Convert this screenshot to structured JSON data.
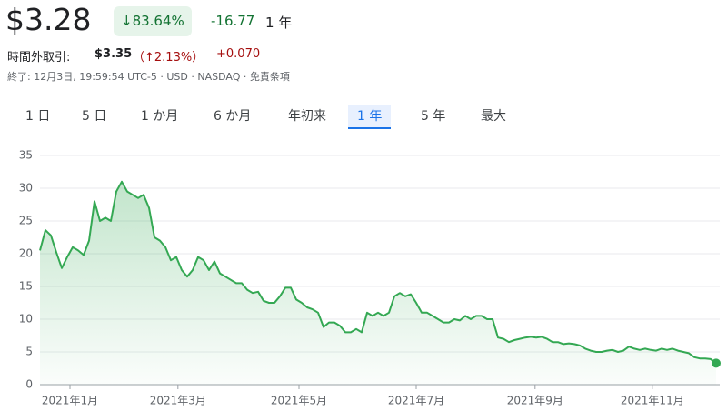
{
  "header": {
    "price": "$3.28",
    "change_pct": "↓83.64%",
    "change": "-16.77",
    "period": "1 年",
    "after_hours_label": "時間外取引:",
    "after_hours_price": "$3.35",
    "after_hours_pct": "（↑2.13%）",
    "after_hours_change": "+0.070",
    "footer": "終了: 12月3日, 19:59:54 UTC-5 · USD · NASDAQ · 免責条項"
  },
  "tabs": [
    "1 日",
    "5 日",
    "1 か月",
    "6 か月",
    "年初来",
    "1 年",
    "5 年",
    "最大"
  ],
  "selected_tab": 5,
  "chart_data": {
    "type": "line",
    "color": "#34a853",
    "grid": true,
    "values": [
      20.5,
      23.6,
      22.8,
      20.2,
      17.8,
      19.5,
      21,
      20.5,
      19.8,
      22,
      28,
      25,
      25.5,
      25,
      29.5,
      31,
      29.5,
      29,
      28.5,
      29,
      27,
      22.5,
      22,
      21,
      19,
      19.5,
      17.5,
      16.5,
      17.5,
      19.5,
      19,
      17.5,
      18.8,
      17,
      16.5,
      16,
      15.5,
      15.5,
      14.5,
      14,
      14.2,
      12.8,
      12.5,
      12.5,
      13.5,
      14.8,
      14.8,
      13,
      12.5,
      11.8,
      11.5,
      11,
      8.8,
      9.5,
      9.5,
      9,
      8,
      8,
      8.5,
      8,
      11,
      10.5,
      11,
      10.5,
      11,
      13.5,
      14,
      13.5,
      13.8,
      12.5,
      11,
      11,
      10.5,
      10,
      9.5,
      9.5,
      10,
      9.8,
      10.5,
      10,
      10.5,
      10.5,
      10,
      10,
      7.2,
      7,
      6.5,
      6.8,
      7,
      7.2,
      7.3,
      7.2,
      7.3,
      7,
      6.5,
      6.5,
      6.2,
      6.3,
      6.2,
      6,
      5.5,
      5.2,
      5,
      5,
      5.2,
      5.3,
      5,
      5.2,
      5.8,
      5.5,
      5.3,
      5.5,
      5.3,
      5.2,
      5.5,
      5.3,
      5.5,
      5.2,
      5,
      4.8,
      4.2,
      4,
      4,
      3.9,
      3.28
    ],
    "xlim": [
      0,
      124
    ],
    "xticks": [
      {
        "value": 5.5,
        "label": "2021年1月"
      },
      {
        "value": 25.3,
        "label": "2021年3月"
      },
      {
        "value": 47.5,
        "label": "2021年5月"
      },
      {
        "value": 69,
        "label": "2021年7月"
      },
      {
        "value": 90.8,
        "label": "2021年9月"
      },
      {
        "value": 112.3,
        "label": "2021年11月"
      }
    ],
    "ylim": [
      0,
      35
    ],
    "yticks": [
      0,
      5,
      10,
      15,
      20,
      25,
      30,
      35
    ]
  }
}
